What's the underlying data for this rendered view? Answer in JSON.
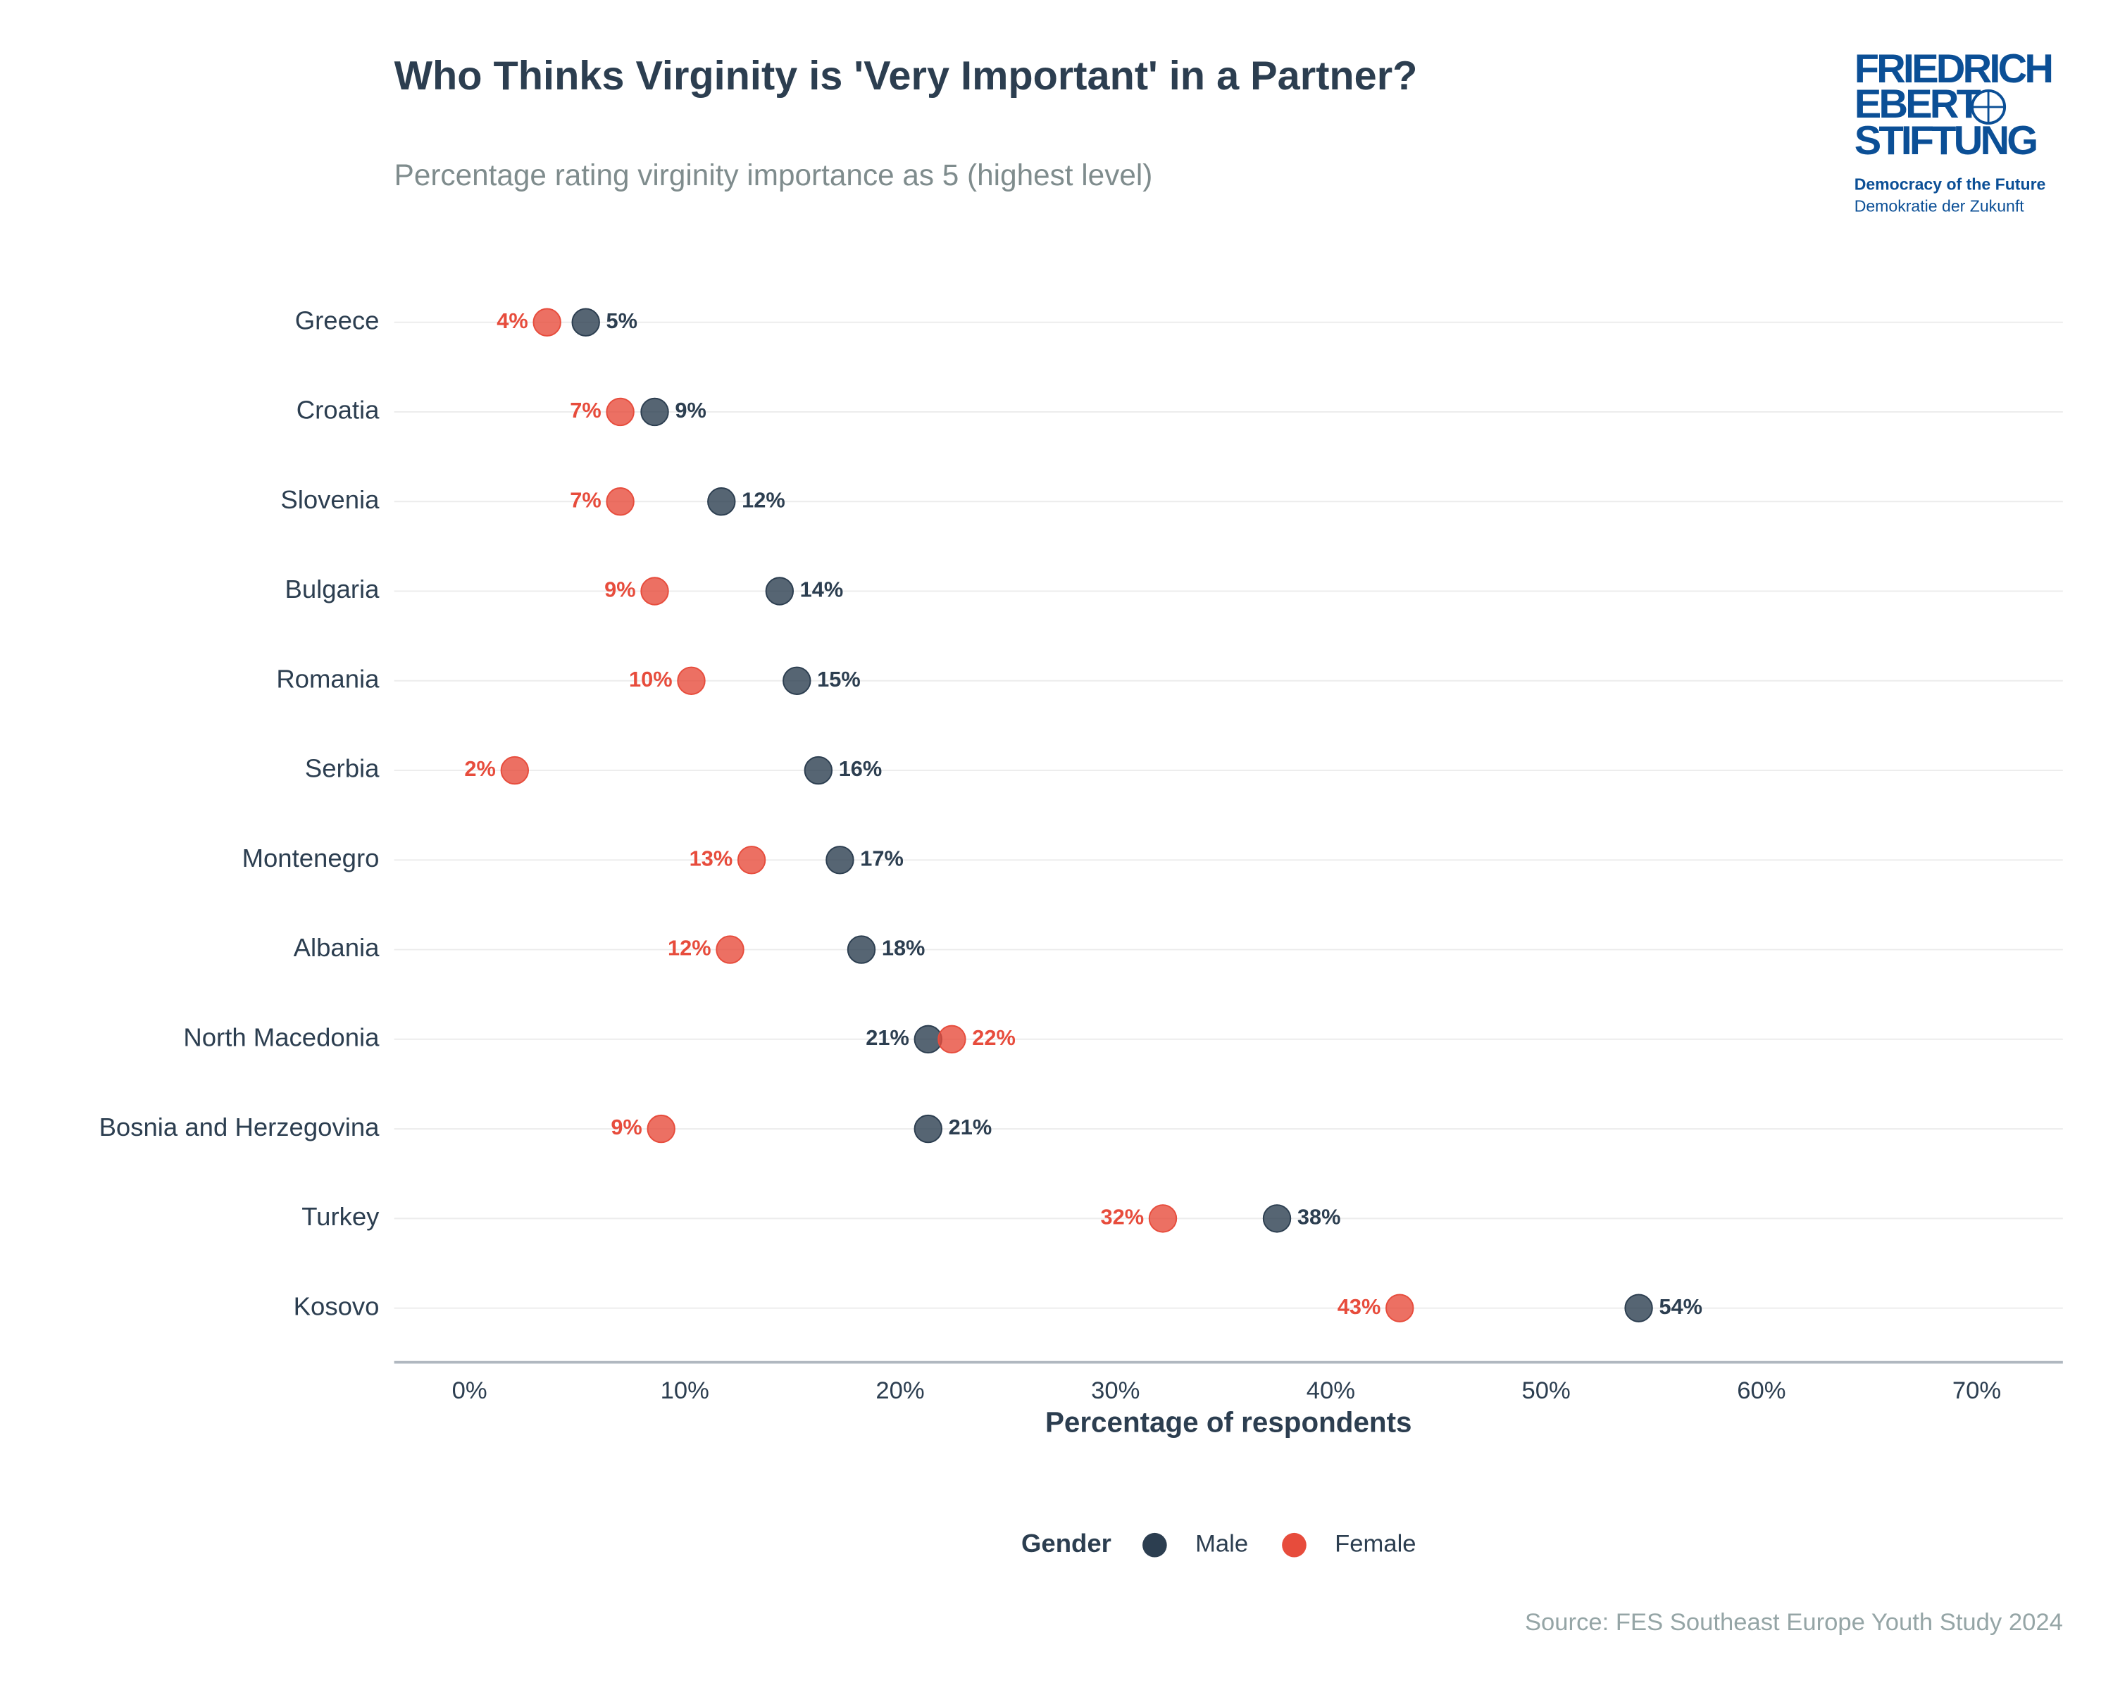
{
  "chart_data": {
    "type": "dot",
    "title": "Who Thinks Virginity is 'Very Important' in a Partner?",
    "subtitle": "Percentage rating virginity importance as 5 (highest level)",
    "xlabel": "Percentage of respondents",
    "source": "Source: FES Southeast Europe Youth Study 2024",
    "legend_title": "Gender",
    "categories": [
      "Greece",
      "Croatia",
      "Slovenia",
      "Bulgaria",
      "Romania",
      "Serbia",
      "Montenegro",
      "Albania",
      "North Macedonia",
      "Bosnia and Herzegovina",
      "Turkey",
      "Kosovo"
    ],
    "series": [
      {
        "name": "Male",
        "color": "#2c3e50",
        "values": [
          5.4,
          8.6,
          11.7,
          14.4,
          15.2,
          16.2,
          17.2,
          18.2,
          21.3,
          21.3,
          37.5,
          54.3
        ],
        "value_labels": [
          "5%",
          "9%",
          "12%",
          "14%",
          "15%",
          "16%",
          "17%",
          "18%",
          "21%",
          "21%",
          "38%",
          "54%"
        ]
      },
      {
        "name": "Female",
        "color": "#e74c3c",
        "values": [
          3.6,
          7.0,
          7.0,
          8.6,
          10.3,
          2.1,
          13.1,
          12.1,
          22.4,
          8.9,
          32.2,
          43.2
        ],
        "value_labels": [
          "4%",
          "7%",
          "7%",
          "9%",
          "10%",
          "2%",
          "13%",
          "12%",
          "22%",
          "9%",
          "32%",
          "43%"
        ]
      }
    ],
    "xlim": [
      -3.5,
      74
    ],
    "xticks": [
      {
        "value": 0,
        "label": "0%"
      },
      {
        "value": 10,
        "label": "10%"
      },
      {
        "value": 20,
        "label": "20%"
      },
      {
        "value": 30,
        "label": "30%"
      },
      {
        "value": 40,
        "label": "40%"
      },
      {
        "value": 50,
        "label": "50%"
      },
      {
        "value": 60,
        "label": "60%"
      },
      {
        "value": 70,
        "label": "70%"
      }
    ],
    "legend_position": "bottom"
  },
  "logo": {
    "line1": "FRIEDRICH",
    "line2": "EBERT",
    "line3": "STIFTUNG",
    "tagline": "Democracy of the Future",
    "tagline_de": "Demokratie der Zukunft"
  }
}
